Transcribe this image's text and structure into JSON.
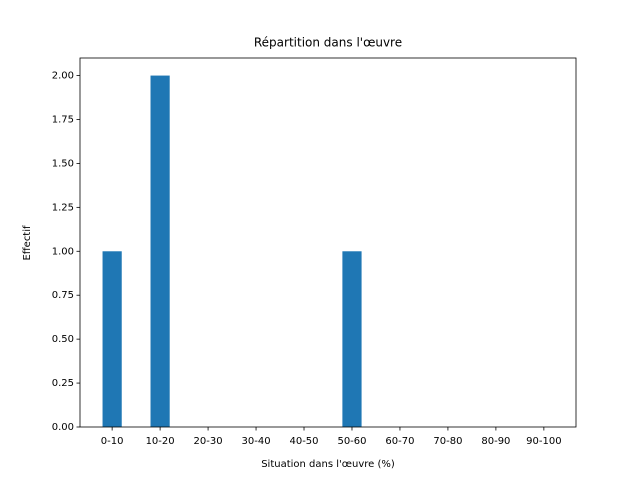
{
  "chart_data": {
    "type": "bar",
    "title": "Répartition dans l'œuvre",
    "x_label": "Situation dans l'œuvre (%)",
    "y_label": "Effectif",
    "categories": [
      "0-10",
      "10-20",
      "20-30",
      "30-40",
      "40-50",
      "50-60",
      "60-70",
      "70-80",
      "80-90",
      "90-100"
    ],
    "values": [
      1,
      2,
      0,
      0,
      0,
      1,
      0,
      0,
      0,
      0
    ],
    "color": "#1f77b4",
    "ylim": [
      0,
      2.1
    ],
    "yticks": [
      {
        "value": 0,
        "label": "0.00"
      },
      {
        "value": 0.25,
        "label": "0.25"
      },
      {
        "value": 0.5,
        "label": "0.50"
      },
      {
        "value": 0.75,
        "label": "0.75"
      },
      {
        "value": 1,
        "label": "1.00"
      },
      {
        "value": 1.25,
        "label": "1.25"
      },
      {
        "value": 1.5,
        "label": "1.50"
      },
      {
        "value": 1.75,
        "label": "1.75"
      },
      {
        "value": 2,
        "label": "2.00"
      }
    ],
    "grid": false
  }
}
